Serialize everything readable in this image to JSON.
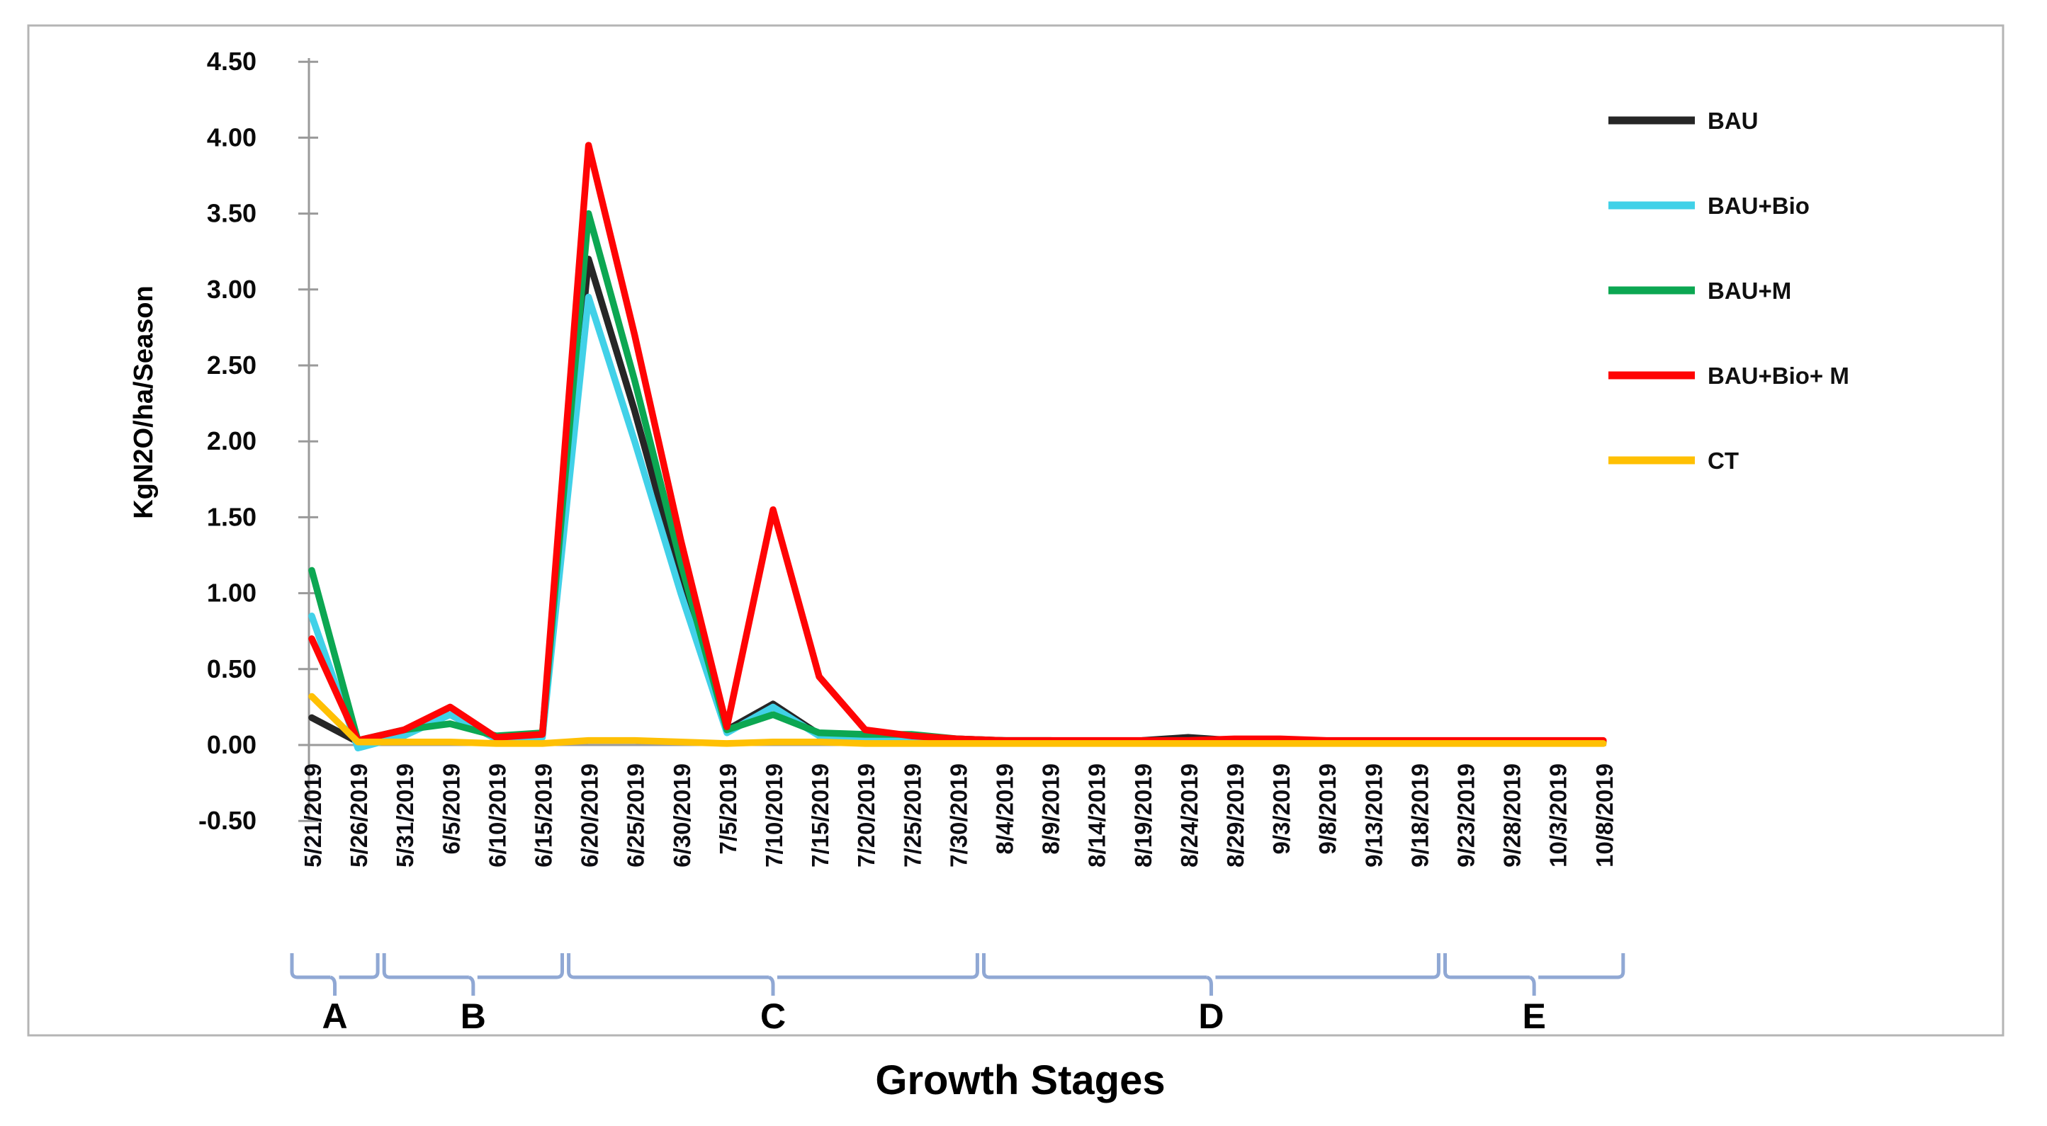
{
  "chart_data": {
    "type": "line",
    "title": "",
    "xlabel": "Growth Stages",
    "ylabel": "KgN2O/ha/Season",
    "ylim": [
      -0.5,
      4.5
    ],
    "y_tick_step": 0.5,
    "y_tick_labels": [
      "4.50",
      "4.00",
      "3.50",
      "3.00",
      "2.50",
      "2.00",
      "1.50",
      "1.00",
      "0.50",
      "0.00",
      "-0.50"
    ],
    "grid": "off",
    "legend_position": "right-inside",
    "line_style": "smoothed",
    "categories": [
      "5/21/2019",
      "5/26/2019",
      "5/31/2019",
      "6/5/2019",
      "6/10/2019",
      "6/15/2019",
      "6/20/2019",
      "6/25/2019",
      "6/30/2019",
      "7/5/2019",
      "7/10/2019",
      "7/15/2019",
      "7/20/2019",
      "7/25/2019",
      "7/30/2019",
      "8/4/2019",
      "8/9/2019",
      "8/14/2019",
      "8/19/2019",
      "8/24/2019",
      "8/29/2019",
      "9/3/2019",
      "9/8/2019",
      "9/13/2019",
      "9/18/2019",
      "9/23/2019",
      "9/28/2019",
      "10/3/2019",
      "10/8/2019"
    ],
    "series": [
      {
        "name": "BAU",
        "color": "#262626",
        "values": [
          0.18,
          0.02,
          0.08,
          0.2,
          0.04,
          0.06,
          3.2,
          2.2,
          1.1,
          0.1,
          0.27,
          0.07,
          0.05,
          0.05,
          0.04,
          0.03,
          0.02,
          0.02,
          0.03,
          0.05,
          0.03,
          0.02,
          0.02,
          0.02,
          0.02,
          0.02,
          0.02,
          0.02,
          0.02
        ]
      },
      {
        "name": "BAU+Bio",
        "color": "#41d1e8",
        "values": [
          0.85,
          -0.02,
          0.06,
          0.2,
          0.04,
          0.05,
          2.95,
          2.0,
          1.0,
          0.08,
          0.25,
          0.06,
          0.04,
          0.04,
          0.03,
          0.02,
          0.02,
          0.02,
          0.02,
          0.02,
          0.02,
          0.02,
          0.02,
          0.02,
          0.02,
          0.02,
          0.02,
          0.02,
          0.02
        ]
      },
      {
        "name": "BAU+M",
        "color": "#0ca752",
        "values": [
          1.15,
          0.03,
          0.1,
          0.14,
          0.06,
          0.08,
          3.5,
          2.4,
          1.2,
          0.1,
          0.2,
          0.08,
          0.07,
          0.07,
          0.04,
          0.03,
          0.03,
          0.02,
          0.02,
          0.02,
          0.02,
          0.02,
          0.02,
          0.02,
          0.02,
          0.02,
          0.02,
          0.02,
          0.02
        ]
      },
      {
        "name": "BAU+Bio+ M",
        "color": "#ff0404",
        "values": [
          0.7,
          0.03,
          0.1,
          0.25,
          0.05,
          0.07,
          3.95,
          2.7,
          1.35,
          0.12,
          1.55,
          0.45,
          0.1,
          0.06,
          0.04,
          0.03,
          0.03,
          0.03,
          0.03,
          0.03,
          0.04,
          0.04,
          0.03,
          0.03,
          0.03,
          0.03,
          0.03,
          0.03,
          0.03
        ]
      },
      {
        "name": "CT",
        "color": "#ffc003",
        "values": [
          0.32,
          0.02,
          0.02,
          0.02,
          0.01,
          0.01,
          0.03,
          0.03,
          0.02,
          0.01,
          0.02,
          0.02,
          0.01,
          0.01,
          0.01,
          0.01,
          0.01,
          0.01,
          0.01,
          0.01,
          0.01,
          0.01,
          0.01,
          0.01,
          0.01,
          0.01,
          0.01,
          0.01,
          0.01
        ]
      }
    ],
    "growth_stages": [
      {
        "label": "A",
        "from": "5/21/2019",
        "to": "5/26/2019",
        "from_index": 0,
        "to_index": 1
      },
      {
        "label": "B",
        "from": "5/31/2019",
        "to": "6/15/2019",
        "from_index": 2,
        "to_index": 5
      },
      {
        "label": "C",
        "from": "6/20/2019",
        "to": "7/30/2019",
        "from_index": 6,
        "to_index": 14
      },
      {
        "label": "D",
        "from": "8/4/2019",
        "to": "9/18/2019",
        "from_index": 15,
        "to_index": 24
      },
      {
        "label": "E",
        "from": "9/23/2019",
        "to": "10/8/2019",
        "from_index": 25,
        "to_index": 28
      }
    ],
    "accent_colors": {
      "bracket_blue": "#90a8d4",
      "axis_gray": "#9a9a9a",
      "border_gray": "#b5b5b5"
    }
  }
}
